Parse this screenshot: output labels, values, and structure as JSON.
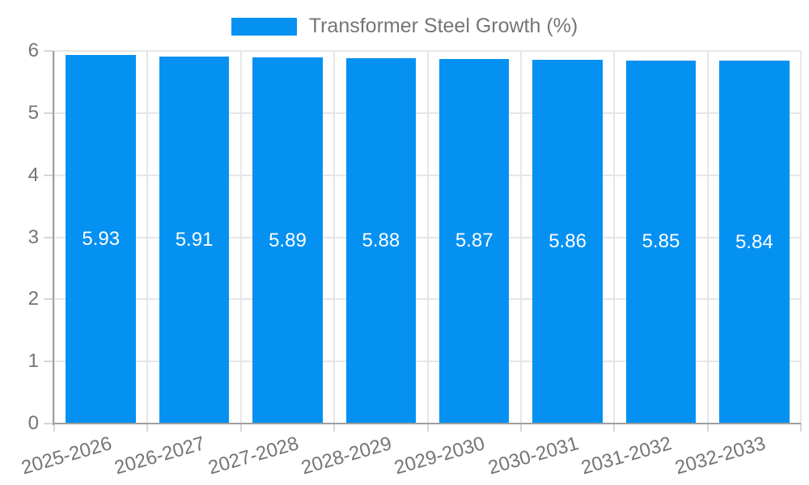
{
  "legend": {
    "label": "Transformer Steel Growth (%)"
  },
  "chart_data": {
    "type": "bar",
    "title": "Transformer Steel Growth (%)",
    "categories": [
      "2025-2026",
      "2026-2027",
      "2027-2028",
      "2028-2029",
      "2029-2030",
      "2030-2031",
      "2031-2032",
      "2032-2033"
    ],
    "values": [
      5.93,
      5.91,
      5.89,
      5.88,
      5.87,
      5.86,
      5.85,
      5.84
    ],
    "value_labels": [
      "5.93",
      "5.91",
      "5.89",
      "5.88",
      "5.87",
      "5.86",
      "5.85",
      "5.84"
    ],
    "xlabel": "",
    "ylabel": "",
    "ylim": [
      0,
      6
    ],
    "yticks": [
      0,
      1,
      2,
      3,
      4,
      5,
      6
    ],
    "grid": true,
    "legend_position": "top",
    "x_tick_rotation_deg": -16,
    "colors": {
      "bar": "#0591f2",
      "value_label": "#ffffff",
      "grid": "#e6e6e6",
      "tick_mark": "#d6d6d6",
      "axis": "#9e9e9e",
      "tick_label": "#757575"
    }
  }
}
